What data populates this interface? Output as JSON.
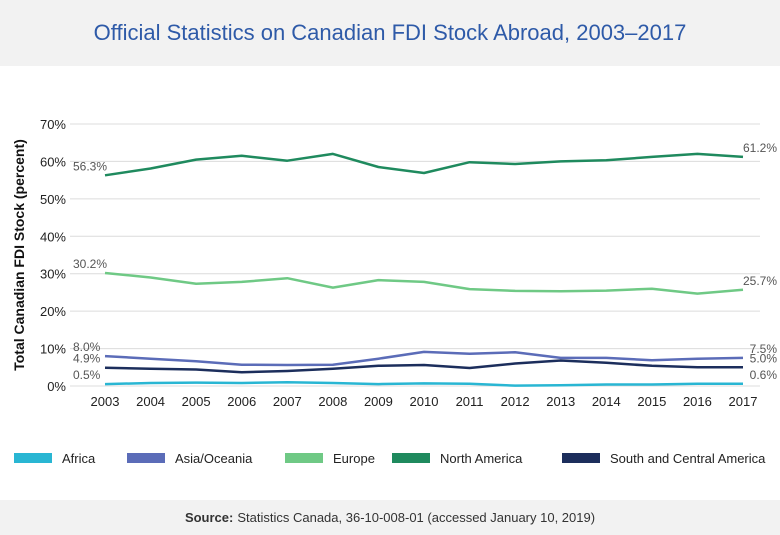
{
  "title": "Official Statistics on Canadian FDI Stock Abroad, 2003–2017",
  "source": {
    "label": "Source:",
    "text": "Statistics Canada, 36-10-008-01 (accessed January 10, 2019)"
  },
  "chart_data": {
    "type": "line",
    "title": "Official Statistics on Canadian FDI Stock Abroad, 2003–2017",
    "xlabel": "",
    "ylabel": "Total Canadian FDI Stock (percent)",
    "ylim": [
      0,
      70
    ],
    "yticks": [
      "0%",
      "10%",
      "20%",
      "30%",
      "40%",
      "50%",
      "60%",
      "70%"
    ],
    "grid": true,
    "legend": "bottom",
    "x": [
      "2003",
      "2004",
      "2005",
      "2006",
      "2007",
      "2008",
      "2009",
      "2010",
      "2011",
      "2012",
      "2013",
      "2014",
      "2015",
      "2016",
      "2017"
    ],
    "series": [
      {
        "name": "Africa",
        "color": "#29b6d3",
        "values": [
          0.5,
          0.8,
          0.9,
          0.8,
          1.0,
          0.8,
          0.5,
          0.7,
          0.6,
          0.1,
          0.2,
          0.4,
          0.4,
          0.6,
          0.6
        ],
        "labels": {
          "first": "0.5%",
          "last": "0.6%"
        }
      },
      {
        "name": "Asia/Oceania",
        "color": "#5b6cb8",
        "values": [
          8.0,
          7.3,
          6.6,
          5.7,
          5.6,
          5.7,
          7.3,
          9.1,
          8.6,
          9.0,
          7.5,
          7.5,
          6.9,
          7.3,
          7.5
        ],
        "labels": {
          "first": "8.0%",
          "last": "7.5%"
        }
      },
      {
        "name": "Europe",
        "color": "#6fc985",
        "values": [
          30.2,
          29.0,
          27.3,
          27.8,
          28.8,
          26.3,
          28.3,
          27.8,
          25.9,
          25.4,
          25.3,
          25.5,
          26.0,
          24.7,
          25.7
        ],
        "labels": {
          "first": "30.2%",
          "last": "25.7%"
        }
      },
      {
        "name": "North America",
        "color": "#1f8a5e",
        "values": [
          56.3,
          58.1,
          60.5,
          61.5,
          60.2,
          62.0,
          58.5,
          56.9,
          59.8,
          59.3,
          60.0,
          60.3,
          61.2,
          62.0,
          61.2
        ],
        "labels": {
          "first": "56.3%",
          "last": "61.2%"
        }
      },
      {
        "name": "South and Central America",
        "color": "#1c2e5c",
        "values": [
          4.9,
          4.6,
          4.4,
          3.7,
          4.0,
          4.6,
          5.4,
          5.6,
          4.8,
          6.0,
          6.8,
          6.2,
          5.4,
          5.0,
          5.0
        ],
        "labels": {
          "first": "4.9%",
          "last": "5.0%"
        }
      }
    ]
  }
}
